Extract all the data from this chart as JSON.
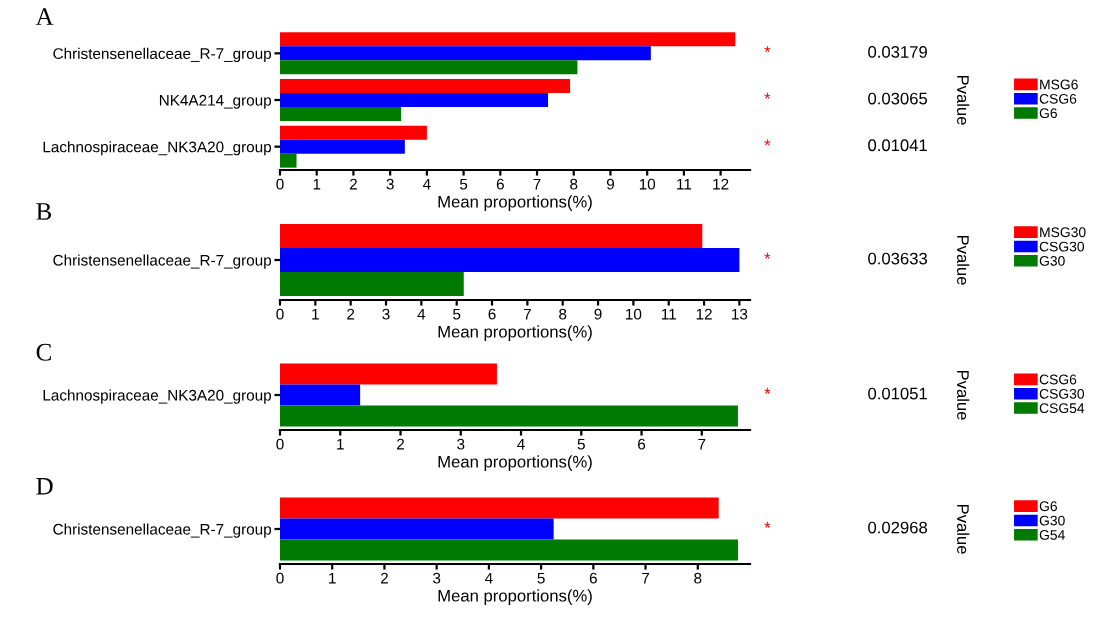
{
  "chart_data": [
    {
      "type": "bar",
      "orientation": "horizontal",
      "title": "A",
      "xlabel": "Mean proportions(%)",
      "y2label": "Pvalue",
      "categories": [
        "Christensenellaceae_R-7_group",
        "NK4A214_group",
        "Lachnospiraceae_NK3A20_group"
      ],
      "series": [
        {
          "name": "MSG6",
          "color": "#ff0000",
          "values": [
            12.4,
            7.9,
            4.0
          ]
        },
        {
          "name": "CSG6",
          "color": "#0000ff",
          "values": [
            10.1,
            7.3,
            3.4
          ]
        },
        {
          "name": "G6",
          "color": "#007a00",
          "values": [
            8.1,
            3.3,
            0.45
          ]
        }
      ],
      "xlim": [
        0,
        12.8
      ],
      "xticks": [
        0,
        1,
        2,
        3,
        4,
        5,
        6,
        7,
        8,
        9,
        10,
        11,
        12
      ],
      "legend": "right",
      "grid": false,
      "annotations": [
        "*",
        "0.03179",
        "*",
        "0.03065",
        "*",
        "0.01041"
      ]
    },
    {
      "type": "bar",
      "orientation": "horizontal",
      "title": "B",
      "xlabel": "Mean proportions(%)",
      "y2label": "Pvalue",
      "categories": [
        "Christensenellaceae_R-7_group"
      ],
      "series": [
        {
          "name": "MSG30",
          "color": "#ff0000",
          "values": [
            11.95
          ]
        },
        {
          "name": "CSG30",
          "color": "#0000ff",
          "values": [
            13.0
          ]
        },
        {
          "name": "G30",
          "color": "#007a00",
          "values": [
            5.2
          ]
        }
      ],
      "xlim": [
        0,
        13.3
      ],
      "xticks": [
        0,
        1,
        2,
        3,
        4,
        5,
        6,
        7,
        8,
        9,
        10,
        11,
        12,
        13
      ],
      "legend": "top right",
      "grid": false,
      "annotations": [
        "*",
        "0.03633"
      ]
    },
    {
      "type": "bar",
      "orientation": "horizontal",
      "title": "C",
      "xlabel": "Mean proportions(%)",
      "y2label": "Pvalue",
      "categories": [
        "Lachnospiraceae_NK3A20_group"
      ],
      "series": [
        {
          "name": "CSG6",
          "color": "#ff0000",
          "values": [
            3.6
          ]
        },
        {
          "name": "CSG30",
          "color": "#0000ff",
          "values": [
            1.33
          ]
        },
        {
          "name": "CSG54",
          "color": "#007a00",
          "values": [
            7.6
          ]
        }
      ],
      "xlim": [
        0,
        7.8
      ],
      "xticks": [
        0,
        1,
        2,
        3,
        4,
        5,
        6,
        7
      ],
      "legend": "right",
      "grid": false,
      "annotations": [
        "*",
        "0.01051"
      ]
    },
    {
      "type": "bar",
      "orientation": "horizontal",
      "title": "D",
      "xlabel": "Mean proportions(%)",
      "y2label": "Pvalue",
      "categories": [
        "Christensenellaceae_R-7_group"
      ],
      "series": [
        {
          "name": "G6",
          "color": "#ff0000",
          "values": [
            8.4
          ]
        },
        {
          "name": "G30",
          "color": "#0000ff",
          "values": [
            5.24
          ]
        },
        {
          "name": "G54",
          "color": "#007a00",
          "values": [
            8.77
          ]
        }
      ],
      "xlim": [
        0,
        9.0
      ],
      "xticks": [
        0,
        1,
        2,
        3,
        4,
        5,
        6,
        7,
        8
      ],
      "legend": "top right",
      "grid": false,
      "annotations": [
        "*",
        "0.02968"
      ]
    }
  ]
}
